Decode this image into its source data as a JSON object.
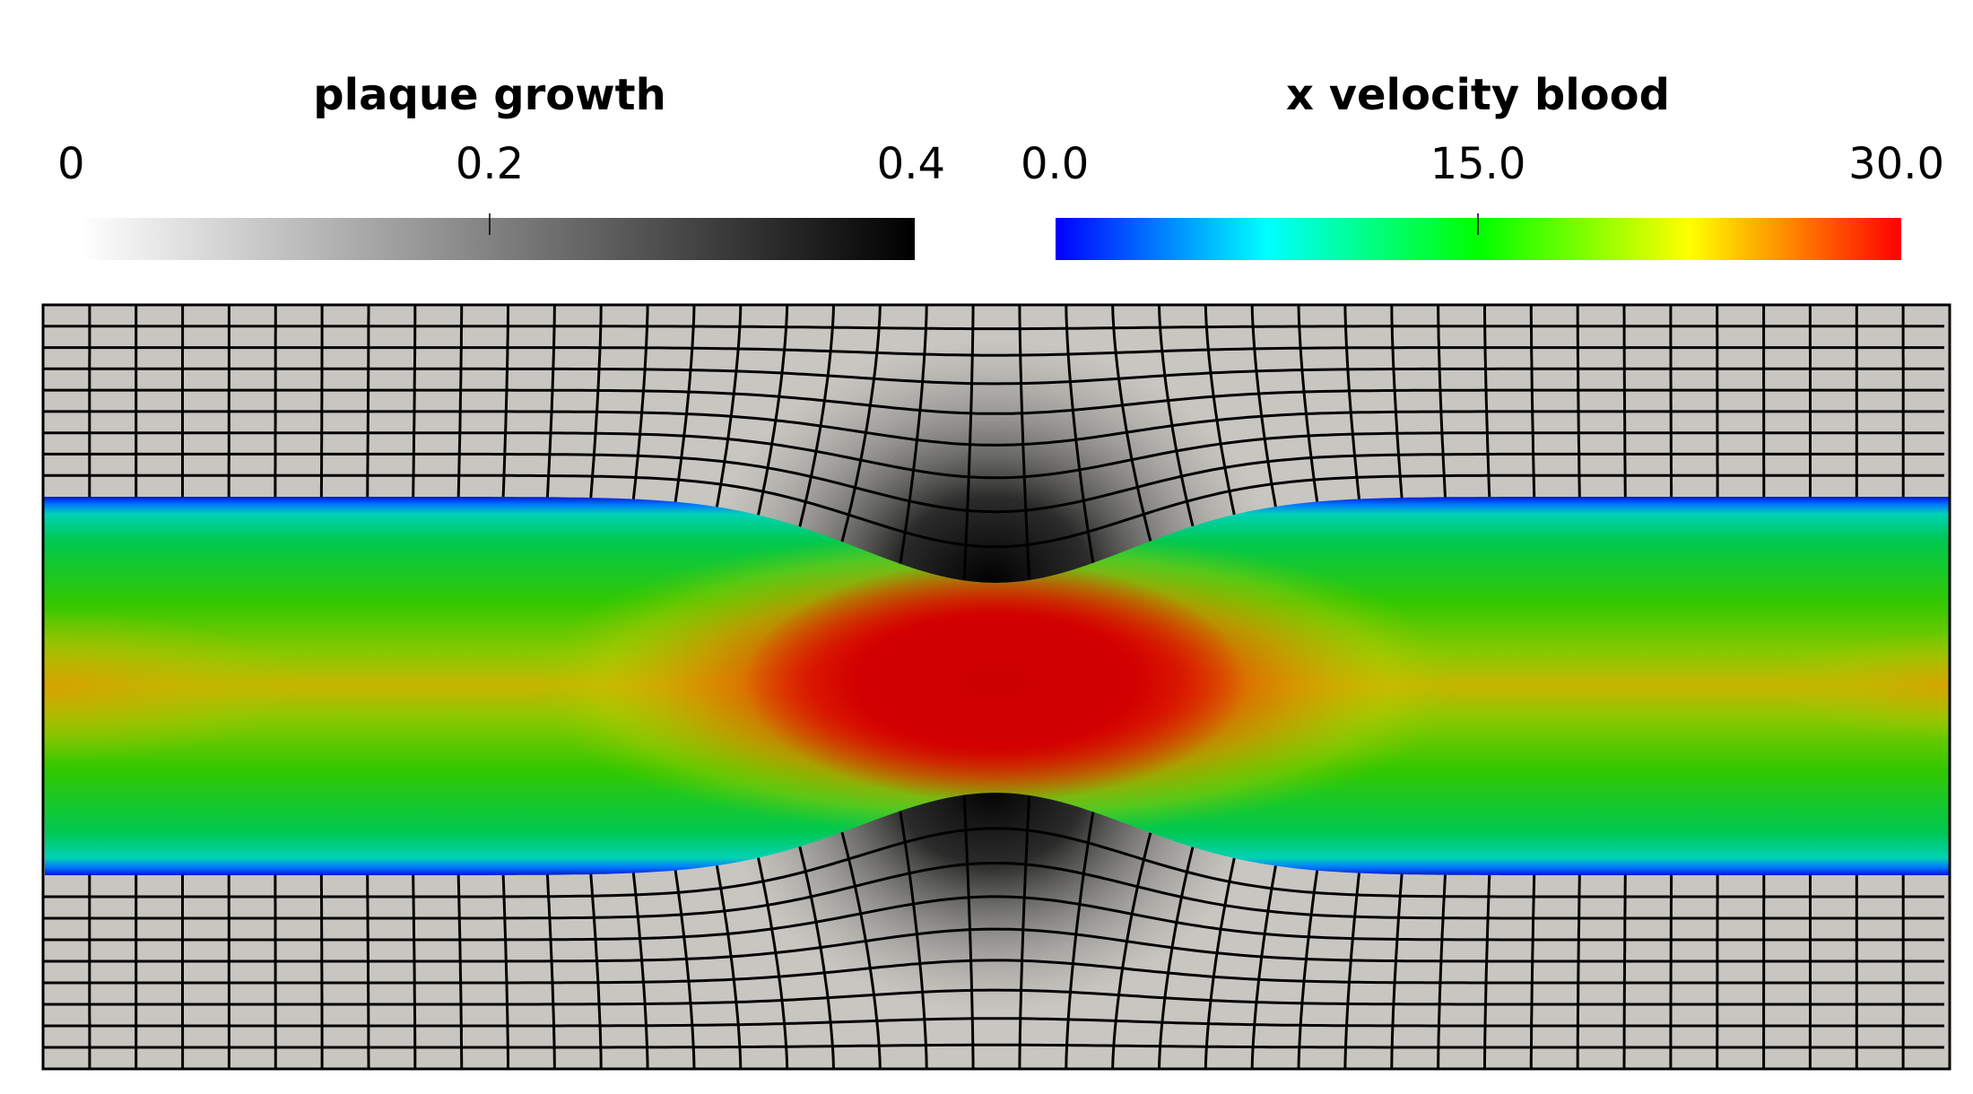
{
  "colorbars": {
    "plaque": {
      "title": "plaque growth",
      "ticks": [
        "0",
        "0.2",
        "0.4"
      ],
      "range": [
        0,
        0.4
      ],
      "colors": [
        "#ffffff",
        "#000000"
      ]
    },
    "velocity": {
      "title": "x velocity blood",
      "ticks": [
        "0.0",
        "15.0",
        "30.0"
      ],
      "range": [
        0.0,
        30.0
      ],
      "colors": [
        "#0000ff",
        "#00ffff",
        "#00ff00",
        "#ffff00",
        "#ff0000"
      ]
    }
  },
  "scene": {
    "wall_color": "#c8c6c0",
    "mesh_line_color": "#000000",
    "plaque_peak_color": "#000000"
  }
}
